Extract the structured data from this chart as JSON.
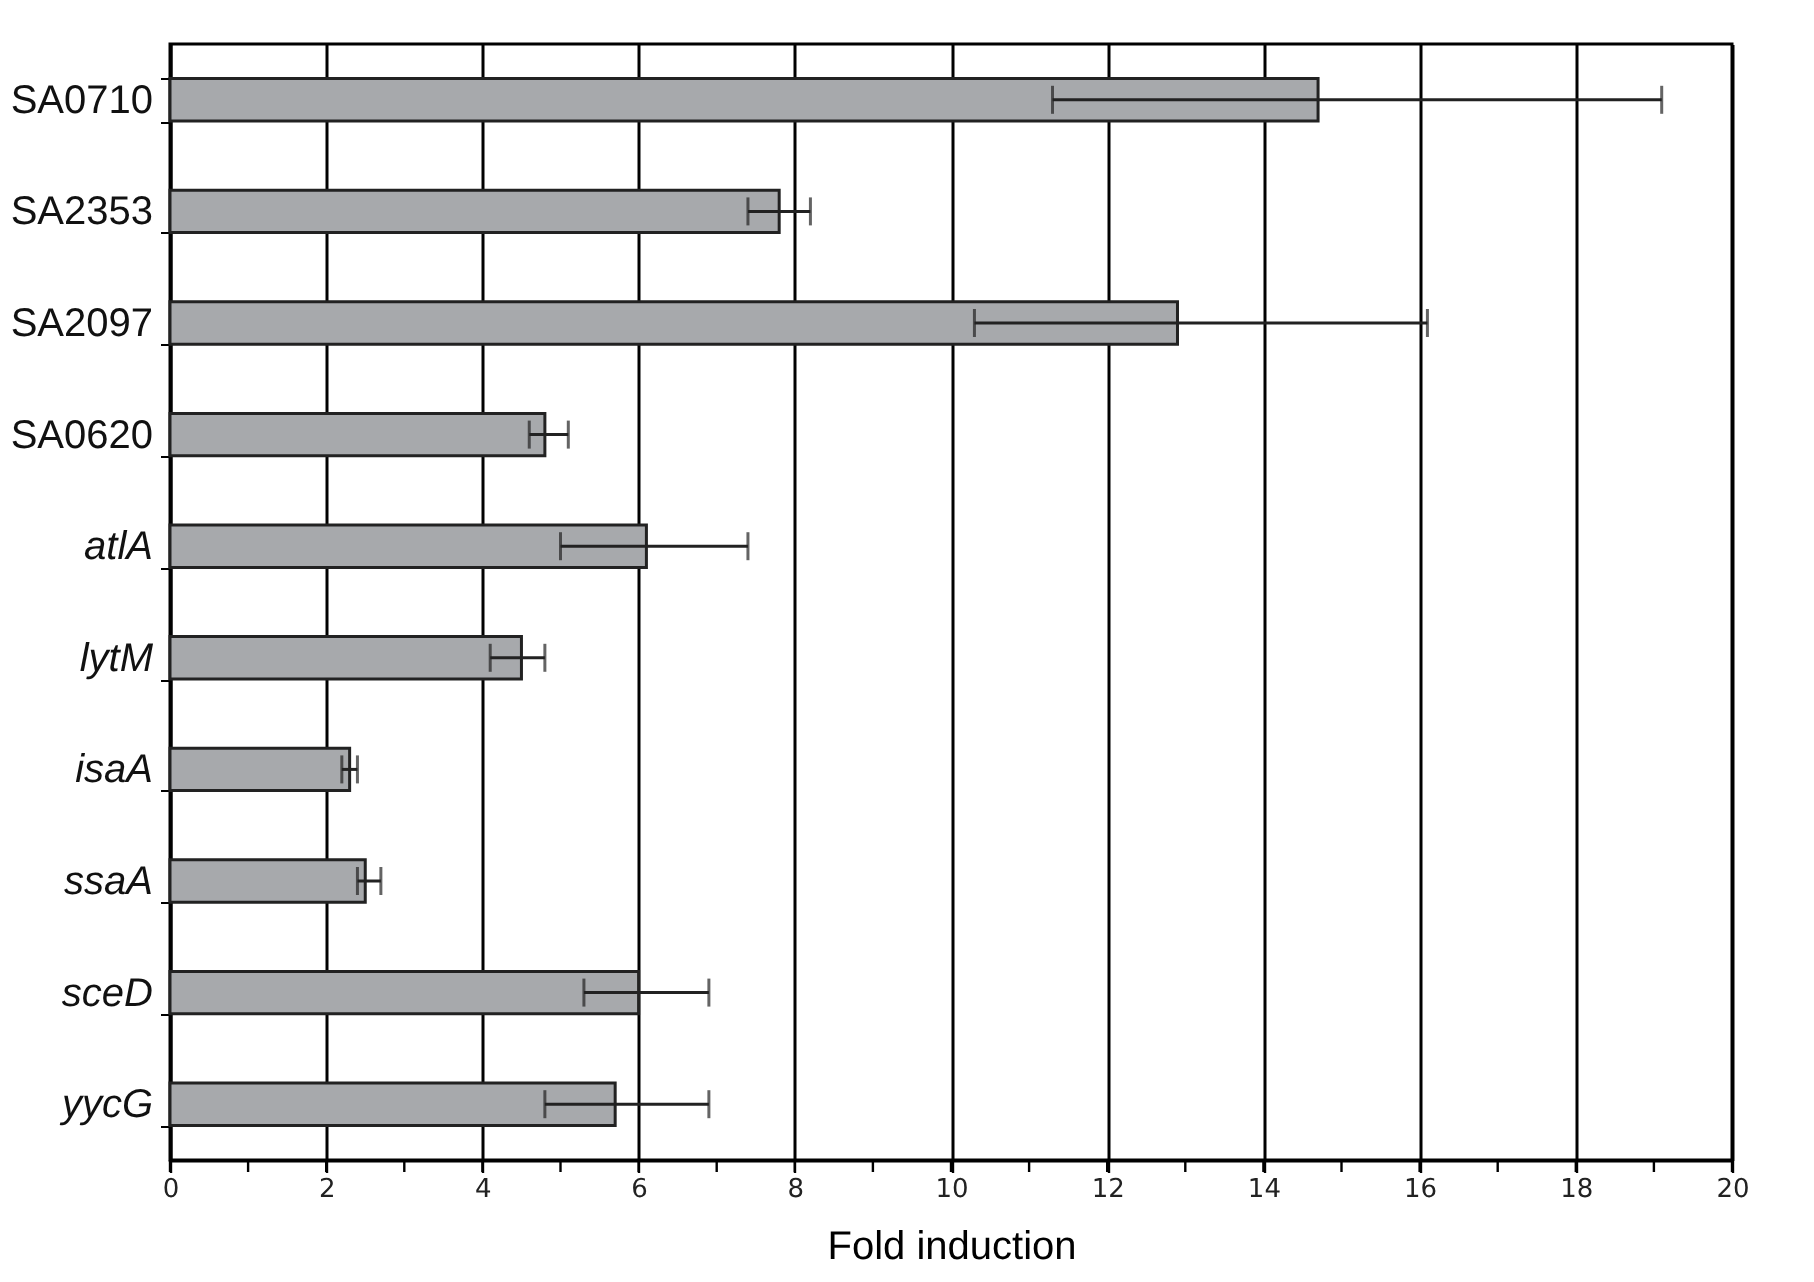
{
  "chart_data": {
    "type": "bar",
    "orientation": "horizontal",
    "xlabel": "Fold induction",
    "categories": [
      "SA0710",
      "SA2353",
      "SA2097",
      "SA0620",
      "atlA",
      "lytM",
      "isaA",
      "ssaA",
      "sceD",
      "yycG"
    ],
    "values": [
      14.7,
      7.8,
      12.9,
      4.8,
      6.1,
      4.5,
      2.3,
      2.5,
      6.0,
      5.7
    ],
    "errors": [
      [
        11.3,
        19.1
      ],
      [
        7.4,
        8.2
      ],
      [
        10.3,
        16.1
      ],
      [
        4.6,
        5.1
      ],
      [
        5.0,
        7.4
      ],
      [
        4.1,
        4.8
      ],
      [
        2.2,
        2.4
      ],
      [
        2.4,
        2.7
      ],
      [
        5.3,
        6.9
      ],
      [
        4.8,
        6.9
      ]
    ],
    "color": "#a7a9ac",
    "xlim": [
      0,
      20
    ],
    "xticks": [
      0,
      {
        "value": 1,
        "label": null
      },
      2,
      {
        "value": 3,
        "label": null
      },
      4,
      {
        "value": 5,
        "label": null
      },
      6,
      {
        "value": 7,
        "label": null
      },
      8,
      {
        "value": 9,
        "label": null
      },
      10,
      {
        "value": 11,
        "label": null
      },
      12,
      {
        "value": 13,
        "label": null
      },
      14,
      {
        "value": 15,
        "label": null
      },
      16,
      {
        "value": 17,
        "label": null
      },
      18,
      {
        "value": 19,
        "label": null
      },
      20
    ],
    "grid": "x"
  }
}
